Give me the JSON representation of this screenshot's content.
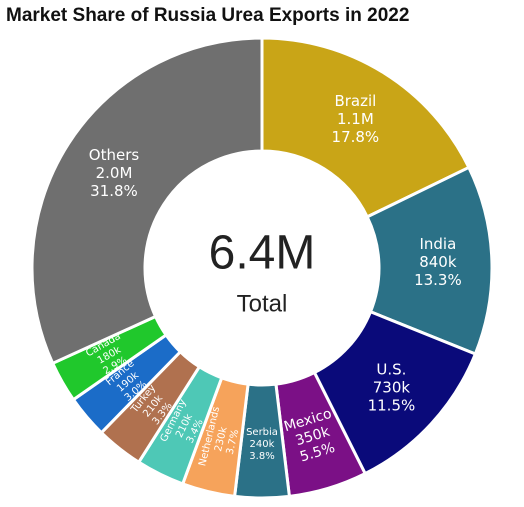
{
  "chart_data": {
    "type": "donut",
    "title": "Market Share of Russia Urea Exports in 2022",
    "categories": [
      "Brazil",
      "India",
      "U.S.",
      "Mexico",
      "Serbia",
      "Netherlands",
      "Germany",
      "Turkey",
      "France",
      "Canada",
      "Others"
    ],
    "values": [
      17.8,
      13.3,
      11.5,
      5.5,
      3.8,
      3.7,
      3.4,
      3.3,
      3.0,
      2.9,
      31.8
    ],
    "value_labels": [
      "17.8%",
      "13.3%",
      "11.5%",
      "5.5%",
      "3.8%",
      "3.7%",
      "3.4%",
      "3.3%",
      "3.0%",
      "2.9%",
      "31.8%"
    ],
    "amounts": [
      1100000,
      840000,
      730000,
      350000,
      240000,
      230000,
      210000,
      210000,
      190000,
      180000,
      2000000
    ],
    "amount_labels": [
      "1.1M",
      "840k",
      "730k",
      "350k",
      "240k",
      "230k",
      "210k",
      "210k",
      "190k",
      "180k",
      "2.0M"
    ],
    "colors": [
      "#c9a517",
      "#2b7187",
      "#0a0a7a",
      "#7b1086",
      "#2b7187",
      "#f6a35b",
      "#4ec8b6",
      "#b0714f",
      "#1b6cc8",
      "#20c82c",
      "#6f6f6f"
    ],
    "total": 6400000,
    "total_label": "6.4M",
    "total_caption": "Total"
  }
}
